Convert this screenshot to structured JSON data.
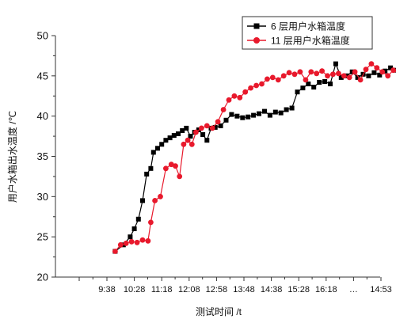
{
  "chart_data": {
    "type": "line",
    "xlabel": "测试时间 /t",
    "ylabel": "用户水箱出水温度 /℃",
    "ylim": [
      20,
      50
    ],
    "yticks": [
      20,
      25,
      30,
      35,
      40,
      45,
      50
    ],
    "xticklabels": [
      "9:38",
      "10:28",
      "11:18",
      "12:08",
      "12:58",
      "13:48",
      "14:38",
      "15:28",
      "16:18",
      "…",
      "14:53"
    ],
    "grid": false,
    "legend_position": "top-right",
    "series": [
      {
        "name": "6 层用户水箱温度",
        "marker": "square",
        "color": "#000000",
        "x": [
          0.3,
          0.6,
          0.85,
          1.0,
          1.15,
          1.3,
          1.45,
          1.6,
          1.7,
          1.85,
          2.0,
          2.15,
          2.3,
          2.45,
          2.6,
          2.75,
          2.9,
          3.05,
          3.2,
          3.35,
          3.5,
          3.65,
          3.8,
          3.95,
          4.15,
          4.35,
          4.55,
          4.75,
          4.95,
          5.15,
          5.35,
          5.55,
          5.75,
          5.95,
          6.15,
          6.35,
          6.55,
          6.75,
          6.95,
          7.15,
          7.35,
          7.55,
          7.75,
          7.95,
          8.15,
          8.35,
          8.55,
          8.75,
          8.95,
          9.15,
          9.35,
          9.55,
          9.75,
          9.95,
          10.15,
          10.35,
          10.55,
          10.75,
          10.95,
          11.15,
          11.35,
          11.55,
          11.75,
          11.95,
          12.15,
          12.35,
          12.55,
          12.75,
          12.95,
          13.15,
          13.35,
          13.55,
          13.75,
          13.95,
          14.15,
          14.35,
          14.55
        ],
        "y": [
          23.2,
          24.0,
          25.0,
          26.0,
          27.2,
          29.5,
          32.8,
          33.5,
          35.5,
          36.0,
          36.5,
          37.0,
          37.3,
          37.6,
          37.8,
          38.2,
          38.5,
          37.5,
          38.0,
          38.3,
          37.7,
          37.0,
          38.5,
          38.6,
          38.8,
          39.5,
          40.2,
          40.0,
          39.8,
          39.9,
          40.1,
          40.3,
          40.6,
          40.1,
          40.5,
          40.4,
          40.8,
          41.0,
          43.0,
          43.5,
          44.0,
          43.6,
          44.2,
          44.3,
          44.0,
          46.5,
          44.8,
          45.0,
          45.5,
          44.8,
          45.2,
          45.0,
          45.4,
          45.1,
          45.6,
          46.0,
          45.7,
          45.4,
          45.0,
          45.8,
          45.2,
          45.5,
          45.3,
          45.6,
          45.4,
          45.5,
          45.2,
          45.0,
          45.3,
          45.6,
          45.1,
          44.8,
          45.5,
          44.9,
          45.2,
          45.3,
          45.0
        ]
      },
      {
        "name": "11 层用户水箱温度",
        "marker": "circle",
        "color": "#e8192c",
        "x": [
          0.3,
          0.5,
          0.7,
          0.9,
          1.1,
          1.3,
          1.5,
          1.6,
          1.75,
          1.95,
          2.15,
          2.35,
          2.5,
          2.65,
          2.8,
          2.95,
          3.1,
          3.25,
          3.45,
          3.65,
          3.85,
          4.05,
          4.25,
          4.45,
          4.65,
          4.85,
          5.05,
          5.25,
          5.45,
          5.65,
          5.85,
          6.05,
          6.25,
          6.45,
          6.65,
          6.85,
          7.05,
          7.25,
          7.45,
          7.65,
          7.85,
          8.05,
          8.25,
          8.45,
          8.65,
          8.85,
          9.05,
          9.25,
          9.45,
          9.65,
          9.85,
          10.05,
          10.25,
          10.45,
          10.65,
          10.85,
          11.05,
          11.25,
          11.45,
          11.65,
          11.85,
          12.05,
          12.25,
          12.45,
          12.65,
          12.85,
          13.05,
          13.25,
          13.45,
          13.65,
          13.85,
          14.05,
          14.25,
          14.45,
          14.6
        ],
        "y": [
          23.2,
          24.0,
          24.2,
          24.4,
          24.3,
          24.6,
          24.5,
          26.8,
          29.5,
          30.0,
          33.5,
          34.0,
          33.8,
          32.5,
          36.5,
          37.0,
          36.5,
          38.0,
          38.5,
          38.8,
          38.5,
          39.3,
          40.8,
          42.0,
          42.5,
          42.3,
          43.0,
          43.5,
          43.8,
          44.0,
          44.6,
          44.8,
          44.5,
          45.0,
          45.4,
          45.2,
          45.5,
          44.5,
          45.5,
          45.3,
          45.6,
          45.0,
          45.2,
          45.3,
          45.0,
          44.8,
          45.5,
          44.5,
          45.8,
          46.5,
          46.0,
          45.5,
          45.0,
          45.7,
          45.3,
          45.6,
          45.0,
          45.5,
          45.2,
          45.6,
          44.5,
          45.3,
          45.0,
          45.4,
          45.2,
          45.5,
          45.0,
          45.3,
          44.8,
          45.2,
          44.8,
          45.4,
          44.6,
          45.0,
          45.3
        ]
      }
    ]
  }
}
